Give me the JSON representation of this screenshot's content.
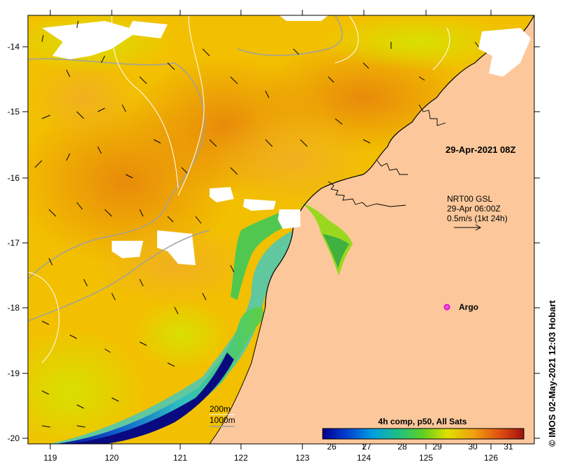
{
  "map": {
    "timestamp": "29-Apr-2021 08Z",
    "current_info": {
      "line1": "NRT00 GSL",
      "line2": "29-Apr 06:00Z",
      "line3": "0.5m/s (1kt 24h)"
    },
    "argo_label": "Argo",
    "contours": {
      "c200": "200m",
      "c1000": "1000m"
    },
    "credit": "© IMOS 02-May-2021 12:03 Hobart",
    "colorbar": {
      "title": "4h comp, p50, All Sats",
      "ticks": [
        "26",
        "27",
        "28",
        "29",
        "30",
        "31"
      ]
    },
    "lon_ticks": [
      "119",
      "120",
      "121",
      "122",
      "123",
      "124",
      "125",
      "126"
    ],
    "lat_ticks": [
      "-14",
      "-15",
      "-16",
      "-17",
      "-18",
      "-19",
      "-20"
    ],
    "colors": {
      "land": "#fcc89b",
      "sst_warm": "#f0a018",
      "sst_mid": "#e8d800",
      "sst_cool": "#40c040",
      "sst_cold": "#0060c0",
      "cloud": "#ffffff"
    }
  }
}
